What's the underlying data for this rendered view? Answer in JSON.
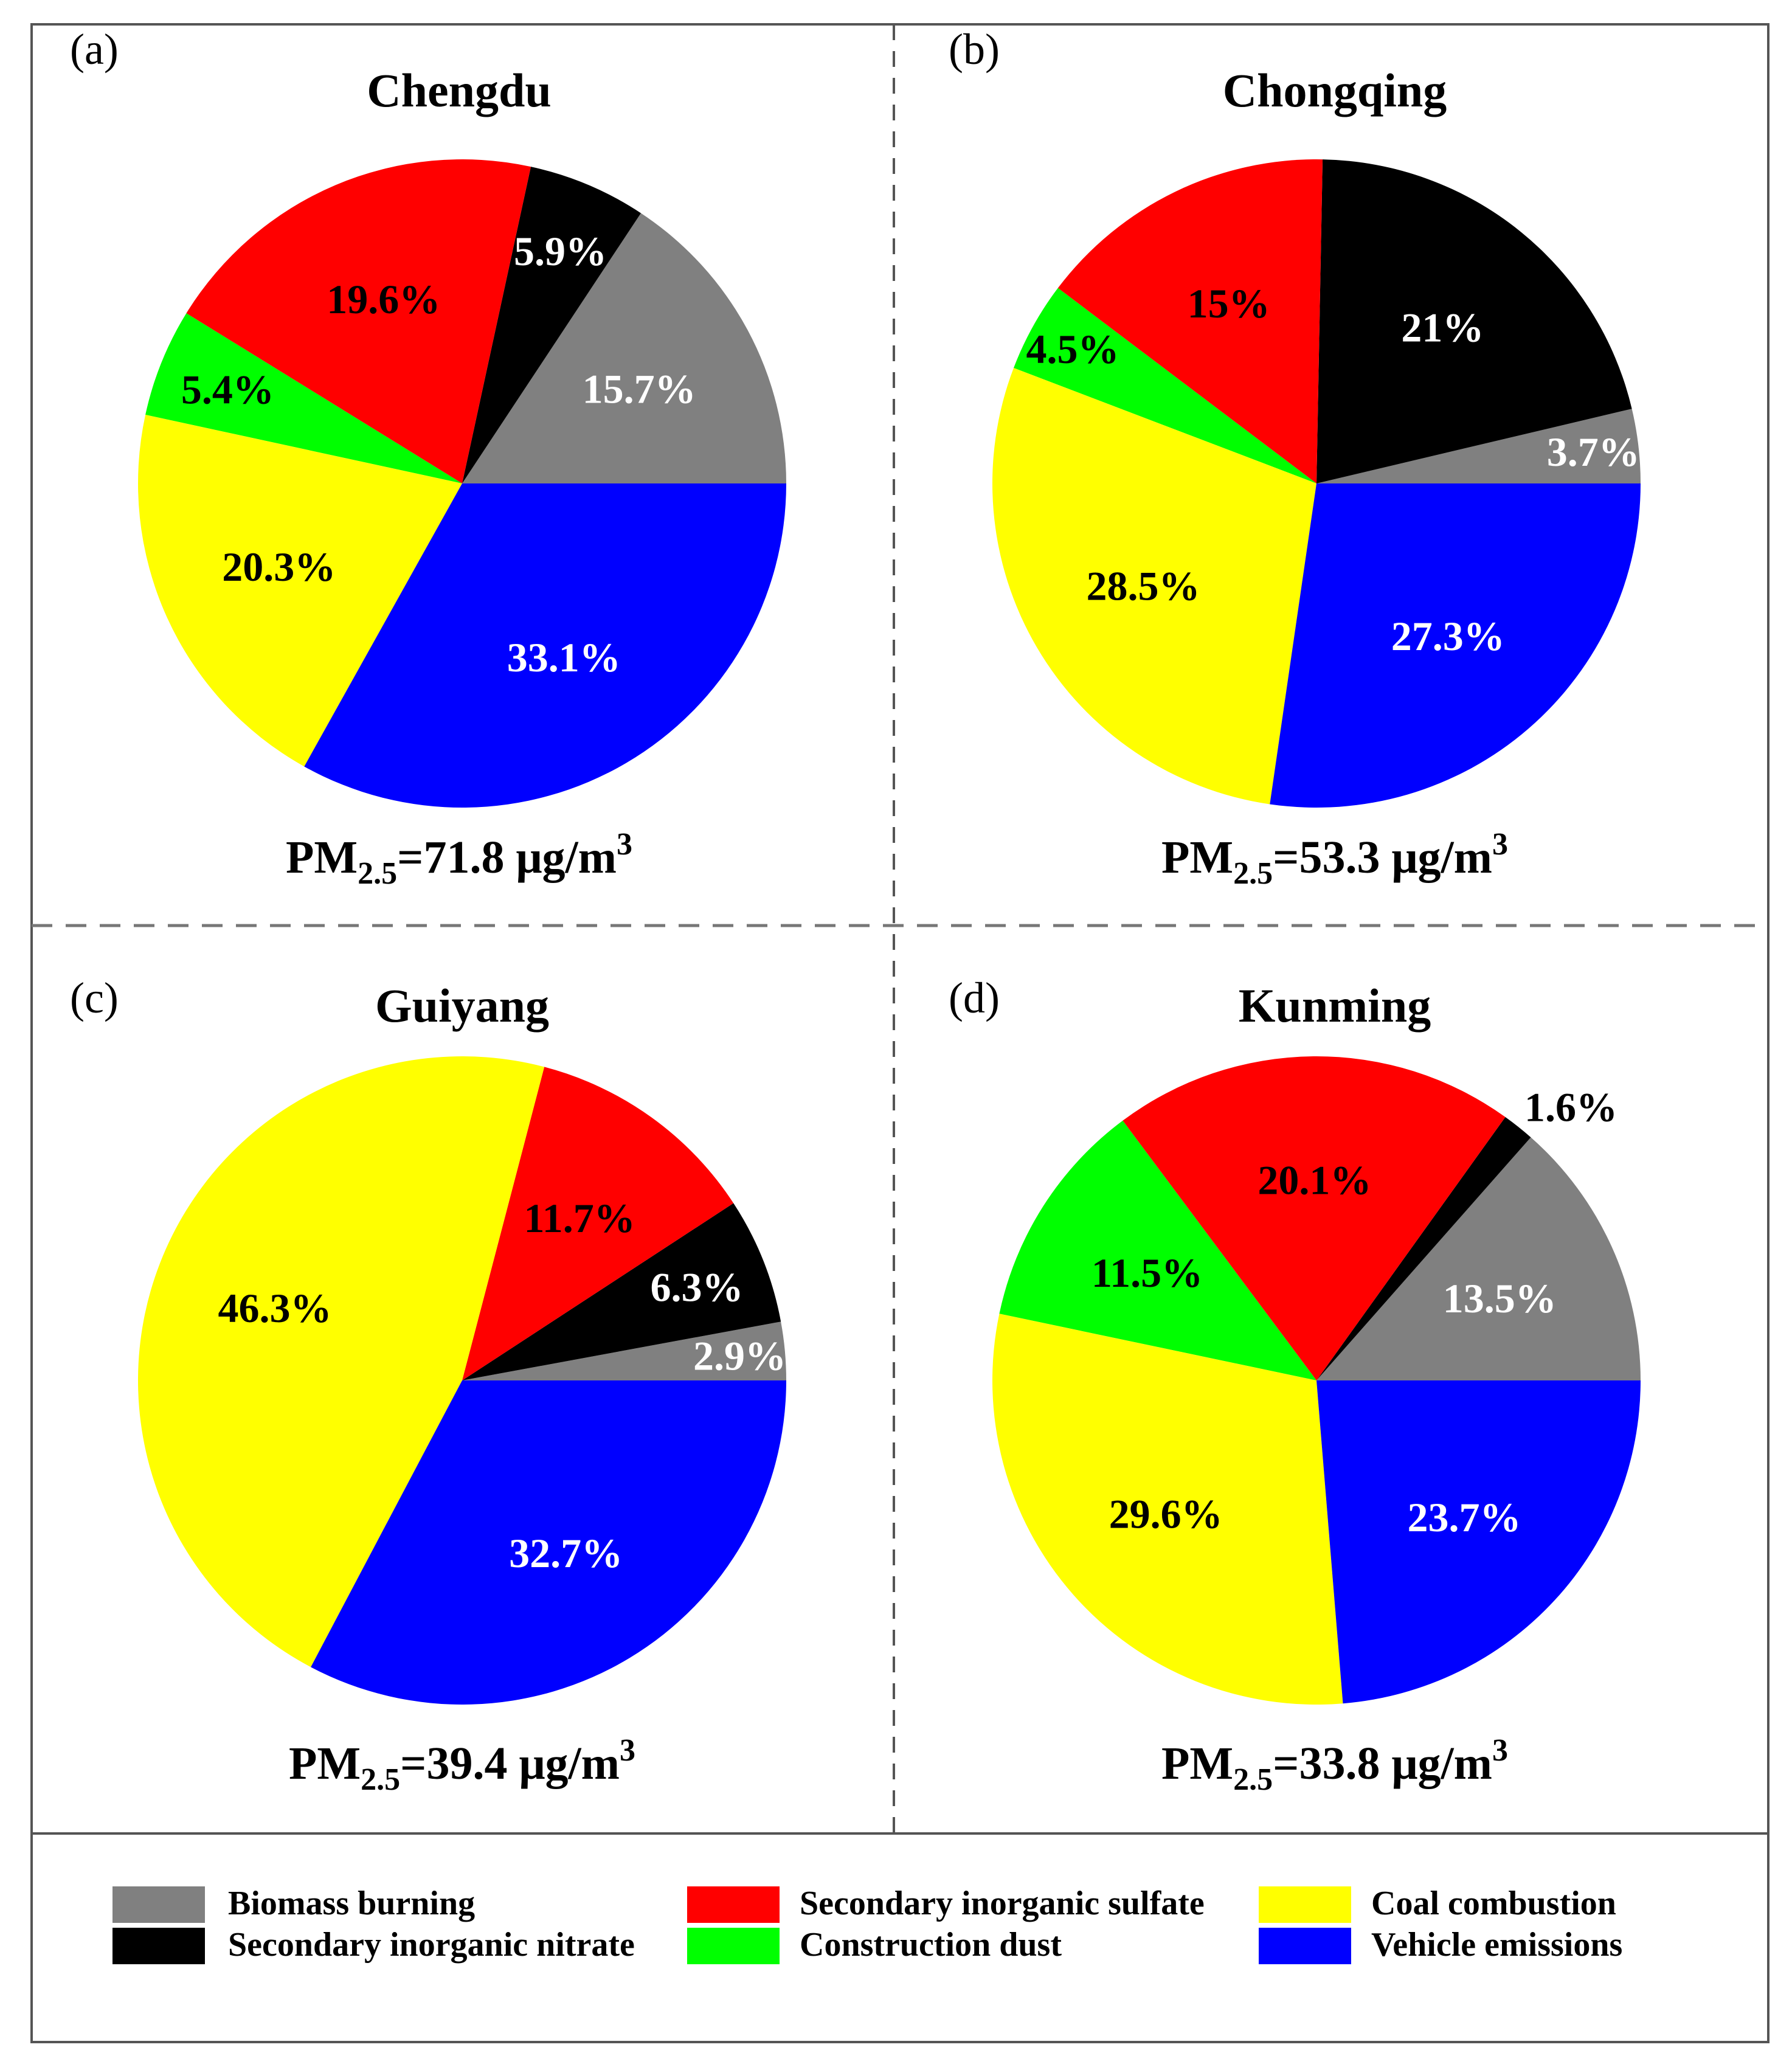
{
  "colors": {
    "Biomass burning": "#808080",
    "Secondary inorganic nitrate": "#000000",
    "Secondary inorganic sulfate": "#ff0000",
    "Construction dust": "#00ff00",
    "Coal combustion": "#ffff00",
    "Vehicle emissions": "#0000ff"
  },
  "legend": [
    {
      "name": "Biomass burning"
    },
    {
      "name": "Secondary inorganic nitrate"
    },
    {
      "name": "Secondary inorganic sulfate"
    },
    {
      "name": "Construction dust"
    },
    {
      "name": "Coal combustion"
    },
    {
      "name": "Vehicle emissions"
    }
  ],
  "chart_data": [
    {
      "type": "pie",
      "panel": "(a)",
      "title": "Chengdu",
      "pm_prefix": "PM",
      "pm_sub": "2.5",
      "pm_value": "=71.8 μg/m",
      "pm_sup": "3",
      "slices": [
        {
          "name": "Biomass burning",
          "value": 15.7,
          "label": "15.7%"
        },
        {
          "name": "Secondary inorganic nitrate",
          "value": 5.9,
          "label": "5.9%"
        },
        {
          "name": "Secondary inorganic sulfate",
          "value": 19.6,
          "label": "19.6%"
        },
        {
          "name": "Construction dust",
          "value": 5.4,
          "label": "5.4%"
        },
        {
          "name": "Coal combustion",
          "value": 20.3,
          "label": "20.3%"
        },
        {
          "name": "Vehicle emissions",
          "value": 33.1,
          "label": "33.1%"
        }
      ]
    },
    {
      "type": "pie",
      "panel": "(b)",
      "title": "Chongqing",
      "pm_prefix": "PM",
      "pm_sub": "2.5",
      "pm_value": "=53.3 μg/m",
      "pm_sup": "3",
      "slices": [
        {
          "name": "Biomass burning",
          "value": 3.7,
          "label": "3.7%"
        },
        {
          "name": "Secondary inorganic nitrate",
          "value": 21,
          "label": "21%"
        },
        {
          "name": "Secondary inorganic sulfate",
          "value": 15,
          "label": "15%"
        },
        {
          "name": "Construction dust",
          "value": 4.5,
          "label": "4.5%"
        },
        {
          "name": "Coal combustion",
          "value": 28.5,
          "label": "28.5%"
        },
        {
          "name": "Vehicle emissions",
          "value": 27.3,
          "label": "27.3%"
        }
      ]
    },
    {
      "type": "pie",
      "panel": "(c)",
      "title": "Guiyang",
      "pm_prefix": "PM",
      "pm_sub": "2.5",
      "pm_value": "=39.4 μg/m",
      "pm_sup": "3",
      "slices": [
        {
          "name": "Biomass burning",
          "value": 2.9,
          "label": "2.9%"
        },
        {
          "name": "Secondary inorganic nitrate",
          "value": 6.3,
          "label": "6.3%"
        },
        {
          "name": "Secondary inorganic sulfate",
          "value": 11.7,
          "label": "11.7%"
        },
        {
          "name": "Coal combustion",
          "value": 46.3,
          "label": "46.3%"
        },
        {
          "name": "Vehicle emissions",
          "value": 32.7,
          "label": "32.7%"
        }
      ]
    },
    {
      "type": "pie",
      "panel": "(d)",
      "title": "Kunming",
      "pm_prefix": "PM",
      "pm_sub": "2.5",
      "pm_value": "=33.8 μg/m",
      "pm_sup": "3",
      "slices": [
        {
          "name": "Biomass burning",
          "value": 13.5,
          "label": "13.5%"
        },
        {
          "name": "Secondary inorganic nitrate",
          "value": 1.6,
          "label": "1.6%"
        },
        {
          "name": "Secondary inorganic sulfate",
          "value": 20.1,
          "label": "20.1%"
        },
        {
          "name": "Construction dust",
          "value": 11.5,
          "label": "11.5%"
        },
        {
          "name": "Coal combustion",
          "value": 29.6,
          "label": "29.6%"
        },
        {
          "name": "Vehicle emissions",
          "value": 23.7,
          "label": "23.7%"
        }
      ]
    }
  ]
}
